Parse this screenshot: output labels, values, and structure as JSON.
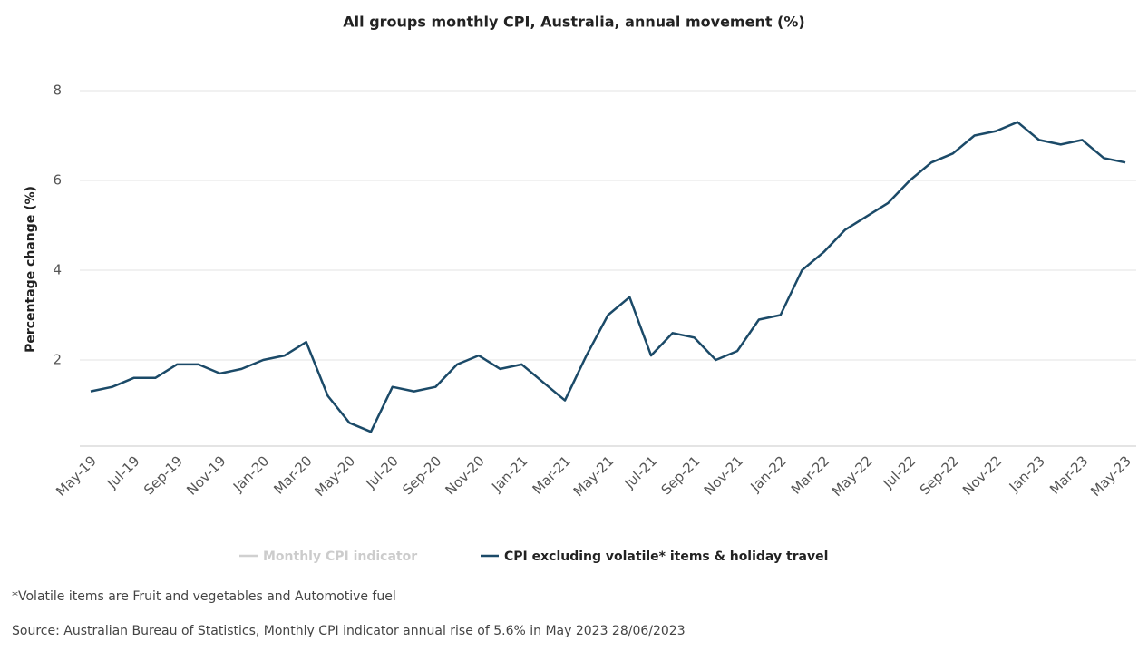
{
  "chart_data": {
    "type": "line",
    "title": "All groups monthly CPI, Australia, annual movement (%)",
    "y_label": "Percentage change (%)",
    "categories": [
      "May-19",
      null,
      "Jul-19",
      null,
      "Sep-19",
      null,
      "Nov-19",
      null,
      "Jan-20",
      null,
      "Mar-20",
      null,
      "May-20",
      null,
      "Jul-20",
      null,
      "Sep-20",
      null,
      "Nov-20",
      null,
      "Jan-21",
      null,
      "Mar-21",
      null,
      "May-21",
      null,
      "Jul-21",
      null,
      "Sep-21",
      null,
      "Nov-21",
      null,
      "Jan-22",
      null,
      "Mar-22",
      null,
      "May-22",
      null,
      "Jul-22",
      null,
      "Sep-22",
      null,
      "Nov-22",
      null,
      "Jan-23",
      null,
      "Mar-23",
      null,
      "May-23"
    ],
    "series": [
      {
        "name": "Monthly CPI indicator",
        "color": "#d0d0d0",
        "visible": false,
        "values": [
          null,
          null,
          null,
          null,
          null,
          null,
          null,
          null,
          null,
          null,
          null,
          null,
          null,
          null,
          null,
          null,
          null,
          null,
          null,
          null,
          null,
          null,
          null,
          null,
          null,
          null,
          null,
          null,
          null,
          null,
          null,
          null,
          null,
          null,
          null,
          null,
          null,
          null,
          null,
          null,
          null,
          null,
          null,
          null,
          null,
          null,
          null,
          null,
          null
        ]
      },
      {
        "name": "CPI excluding volatile* items & holiday travel",
        "color": "#1b4a68",
        "visible": true,
        "values": [
          1.3,
          1.4,
          1.6,
          1.6,
          1.9,
          1.9,
          1.7,
          1.8,
          2.0,
          2.1,
          2.4,
          1.2,
          0.6,
          0.4,
          1.4,
          1.3,
          1.4,
          1.9,
          2.1,
          1.8,
          1.9,
          1.5,
          1.1,
          2.1,
          3.0,
          3.4,
          2.1,
          2.6,
          2.5,
          2.0,
          2.2,
          2.9,
          3.0,
          4.0,
          4.4,
          4.9,
          5.2,
          5.5,
          6.0,
          6.4,
          6.6,
          7.0,
          7.1,
          7.3,
          6.9,
          6.8,
          6.9,
          6.5,
          6.4
        ]
      }
    ],
    "ylim": [
      0,
      8
    ],
    "yticks": [
      2,
      4,
      6,
      8
    ],
    "grid": true,
    "notes": [
      "*Volatile items are Fruit and vegetables and Automotive fuel",
      "Source: Australian Bureau of Statistics, Monthly CPI indicator annual rise of 5.6% in May 2023 28/06/2023"
    ]
  }
}
